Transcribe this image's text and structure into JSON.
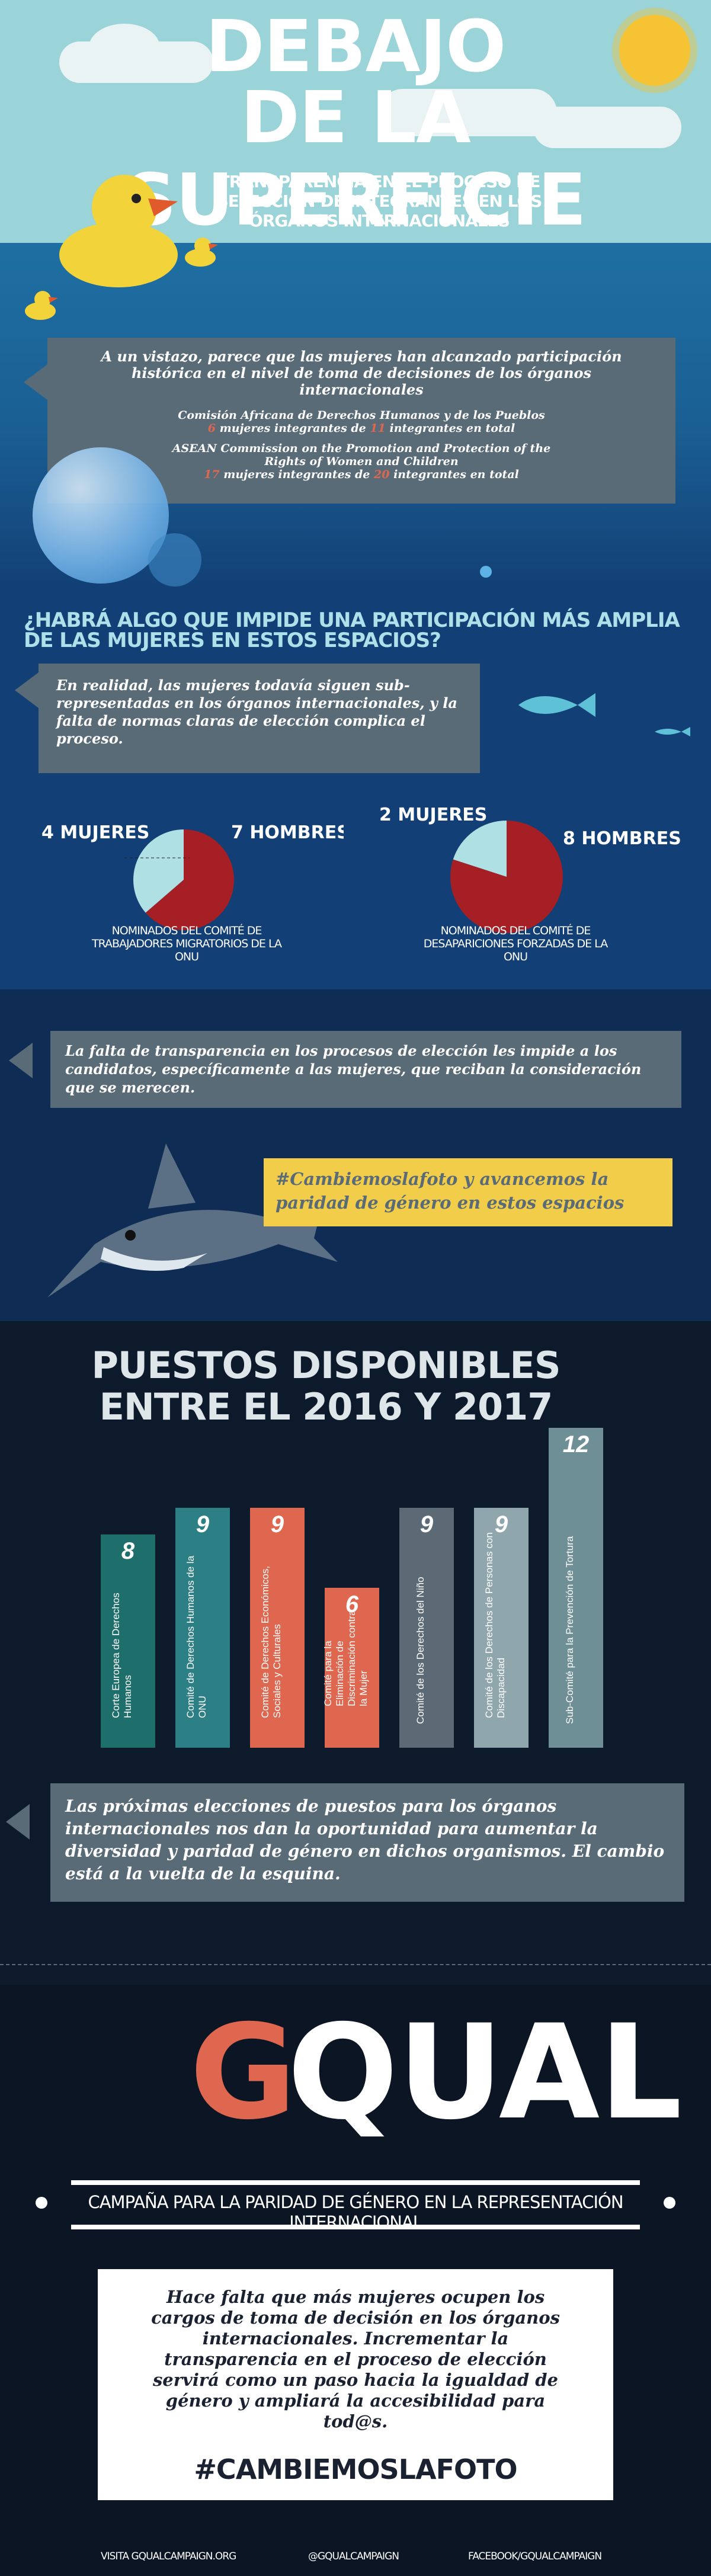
{
  "header": {
    "title_line1": "DEBAJO",
    "title_line2": "DE LA SUPERFICIE",
    "subtitle": "TRANSPARENCIA EN EL PROCESO DE SELECCIÓN DE INTEGRANTES EN LOS ÓRGANOS INTERNACIONALES"
  },
  "intro": {
    "text": "A un vistazo, parece que las mujeres han alcanzado participación histórica en el nivel de toma de decisiones de los órganos internacionales",
    "org1": "Comisión Africana de Derechos Humanos y de los Pueblos",
    "org1_women": "6",
    "org1_mid": "mujeres integrantes de",
    "org1_total": "11",
    "org1_end": "integrantes en total",
    "org2": "ASEAN Commission on the Promotion and Protection of the Rights of Women and Children",
    "org2_women": "17",
    "org2_mid": "mujeres integrantes de",
    "org2_total": "20",
    "org2_end": "integrantes en total"
  },
  "question": {
    "title": "¿HABRÁ ALGO QUE IMPIDE UNA PARTICIPACIÓN MÁS AMPLIA DE LAS MUJERES EN ESTOS ESPACIOS?",
    "text": "En realidad, las mujeres todavía siguen sub-representadas en los órganos internacionales, y la falta de normas claras de elección complica el proceso."
  },
  "pies": [
    {
      "women_label": "4 MUJERES",
      "men_label": "7 HOMBRES",
      "women": 4,
      "men": 7,
      "caption": "NOMINADOS DEL COMITÉ DE TRABAJADORES MIGRATORIOS DE LA ONU"
    },
    {
      "women_label": "2 MUJERES",
      "men_label": "8 HOMBRES",
      "women": 2,
      "men": 8,
      "caption": "NOMINADOS DEL COMITÉ DE DESAPARICIONES FORZADAS DE LA ONU"
    }
  ],
  "transparency": {
    "text": "La falta de transparencia en los procesos de elección les impide a los candidatos, específicamente a las mujeres, que reciban la consideración que se merecen.",
    "hashtag_text": "#Cambiemoslafoto y avancemos la paridad de género en estos espacios"
  },
  "chart_data": {
    "type": "bar",
    "title": "PUESTOS DISPONIBLES ENTRE EL 2016 Y 2017",
    "categories": [
      "Corte Europea de Derechos Humanos",
      "Comité de Derechos Humanos de la ONU",
      "Comité de Derechos Económicos, Sociales y Culturales",
      "Comité para la Eliminación de Discriminación contra la Mujer",
      "Comité de los Derechos del Niño",
      "Comité de los Derechos de Personas con Discapacidad",
      "Sub-Comité para la Prevención de Tortura"
    ],
    "values": [
      8,
      9,
      9,
      6,
      9,
      9,
      12
    ],
    "colors": [
      "#1e6e6c",
      "#2d7f86",
      "#e0674f",
      "#e0674f",
      "#5c6a75",
      "#8fa6ad",
      "#6e8f96"
    ]
  },
  "upcoming": {
    "text": "Las próximas elecciones de puestos para los órganos internacionales nos dan la oportunidad para aumentar la diversidad y paridad de género en dichos organismos. El cambio está a la vuelta de la esquina."
  },
  "footer": {
    "logo_g": "G",
    "logo_rest": "QUAL",
    "campaign": "CAMPAÑA PARA LA PARIDAD DE GÉNERO EN LA REPRESENTACIÓN INTERNACIONAL",
    "closing": "Hace falta que más mujeres ocupen los cargos de toma de decisión en los órganos internacionales. Incrementar la transparencia en el proceso de elección servirá como un paso hacia la igualdad de género y ampliará la accesibilidad para tod@s.",
    "hashtag": "#CAMBIEMOSLAFOTO",
    "link1": "VISITA  GQUALCAMPAIGN.ORG",
    "link2": "@GQUALCAMPAIGN",
    "link3": "FACEBOOK/GQUALCAMPAIGN"
  }
}
